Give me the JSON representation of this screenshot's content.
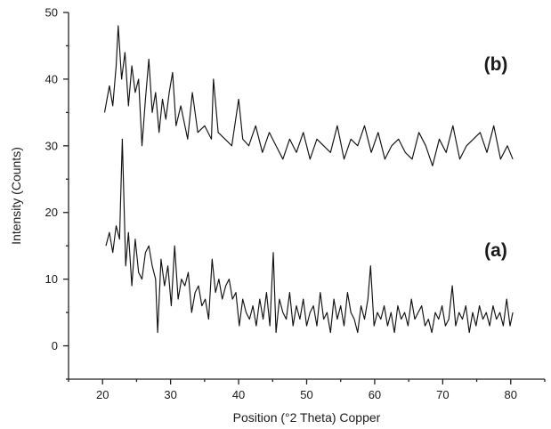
{
  "chart_data": {
    "type": "line",
    "title": "",
    "xlabel": "Position (°2 Theta) Copper",
    "ylabel": "Intensity (Counts)",
    "xlim": [
      15,
      85
    ],
    "ylim": [
      -5,
      50
    ],
    "xticks": [
      20,
      30,
      40,
      50,
      60,
      70,
      80
    ],
    "yticks": [
      0,
      10,
      20,
      30,
      40,
      50
    ],
    "grid": false,
    "legend": "none",
    "annotations": [
      "(b)",
      "(a)"
    ],
    "series": [
      {
        "label": "(b)",
        "x": [
          20.3,
          21.0,
          21.5,
          22.0,
          22.3,
          22.8,
          23.3,
          23.8,
          24.3,
          24.8,
          25.3,
          25.8,
          26.3,
          26.8,
          27.3,
          27.8,
          28.3,
          28.8,
          29.3,
          29.8,
          30.3,
          30.8,
          31.5,
          32.5,
          33.2,
          34.0,
          35.0,
          36.0,
          36.3,
          37.0,
          38.0,
          39.0,
          40.0,
          40.6,
          41.5,
          42.5,
          43.5,
          44.5,
          45.5,
          46.5,
          47.5,
          48.5,
          49.5,
          50.5,
          51.5,
          52.5,
          53.5,
          54.5,
          55.5,
          56.5,
          57.5,
          58.5,
          59.5,
          60.5,
          61.5,
          62.5,
          63.5,
          64.5,
          65.5,
          66.5,
          67.5,
          68.5,
          69.5,
          70.5,
          71.5,
          72.5,
          73.5,
          74.5,
          75.5,
          76.5,
          77.5,
          78.5,
          79.5,
          80.3
        ],
        "y": [
          35,
          39,
          36,
          42,
          48,
          40,
          44,
          36,
          42,
          38,
          40,
          30,
          37,
          43,
          35,
          38,
          32,
          37,
          34,
          38,
          41,
          33,
          36,
          31,
          38,
          32,
          33,
          31,
          40,
          32,
          31,
          30,
          37,
          31,
          30,
          33,
          29,
          32,
          30,
          28,
          31,
          29,
          32,
          28,
          31,
          30,
          29,
          33,
          28,
          31,
          30,
          33,
          29,
          32,
          28,
          30,
          31,
          29,
          28,
          32,
          30,
          27,
          31,
          29,
          33,
          28,
          30,
          31,
          32,
          29,
          33,
          28,
          30,
          28
        ]
      },
      {
        "label": "(a)",
        "x": [
          20.5,
          21.0,
          21.5,
          22.0,
          22.5,
          22.9,
          23.4,
          23.8,
          24.3,
          24.8,
          25.3,
          25.8,
          26.3,
          26.8,
          27.3,
          27.8,
          28.1,
          28.6,
          29.1,
          29.6,
          30.1,
          30.6,
          31.1,
          31.6,
          32.1,
          32.6,
          33.1,
          33.6,
          34.1,
          34.6,
          35.1,
          35.6,
          36.1,
          36.6,
          37.1,
          37.6,
          38.1,
          38.6,
          39.1,
          39.6,
          40.1,
          40.6,
          41.1,
          41.6,
          42.1,
          42.6,
          43.1,
          43.6,
          44.1,
          44.6,
          45.1,
          45.5,
          46.0,
          46.5,
          47.0,
          47.5,
          48.0,
          48.5,
          49.0,
          49.5,
          50.0,
          50.5,
          51.0,
          51.5,
          52.0,
          52.5,
          53.0,
          53.5,
          54.0,
          54.5,
          55.0,
          55.5,
          56.0,
          56.5,
          57.0,
          57.5,
          58.0,
          58.5,
          59.0,
          59.4,
          59.9,
          60.4,
          60.9,
          61.4,
          61.9,
          62.4,
          62.9,
          63.4,
          63.9,
          64.4,
          64.9,
          65.4,
          65.9,
          66.4,
          66.9,
          67.4,
          67.9,
          68.4,
          68.9,
          69.4,
          69.9,
          70.4,
          70.9,
          71.4,
          71.9,
          72.4,
          72.9,
          73.4,
          73.9,
          74.4,
          74.9,
          75.4,
          75.9,
          76.4,
          76.9,
          77.4,
          77.9,
          78.4,
          78.9,
          79.4,
          79.9,
          80.3
        ],
        "y": [
          15,
          17,
          14,
          18,
          16,
          31,
          12,
          17,
          9,
          16,
          11,
          10,
          14,
          15,
          12,
          10,
          2,
          13,
          9,
          12,
          6,
          15,
          7,
          10,
          9,
          11,
          5,
          8,
          9,
          6,
          7,
          4,
          13,
          8,
          10,
          7,
          9,
          10,
          7,
          8,
          3,
          7,
          5,
          4,
          6,
          3,
          7,
          4,
          8,
          3,
          14,
          2,
          7,
          5,
          4,
          8,
          3,
          6,
          4,
          7,
          3,
          5,
          6,
          3,
          8,
          4,
          5,
          2,
          7,
          4,
          6,
          3,
          8,
          5,
          4,
          2,
          6,
          4,
          7,
          12,
          3,
          5,
          4,
          6,
          3,
          5,
          2,
          6,
          4,
          5,
          3,
          7,
          4,
          5,
          6,
          3,
          4,
          2,
          5,
          4,
          6,
          3,
          4,
          9,
          3,
          5,
          4,
          6,
          2,
          5,
          3,
          6,
          4,
          5,
          3,
          6,
          4,
          5,
          3,
          7,
          3,
          5
        ]
      }
    ]
  }
}
